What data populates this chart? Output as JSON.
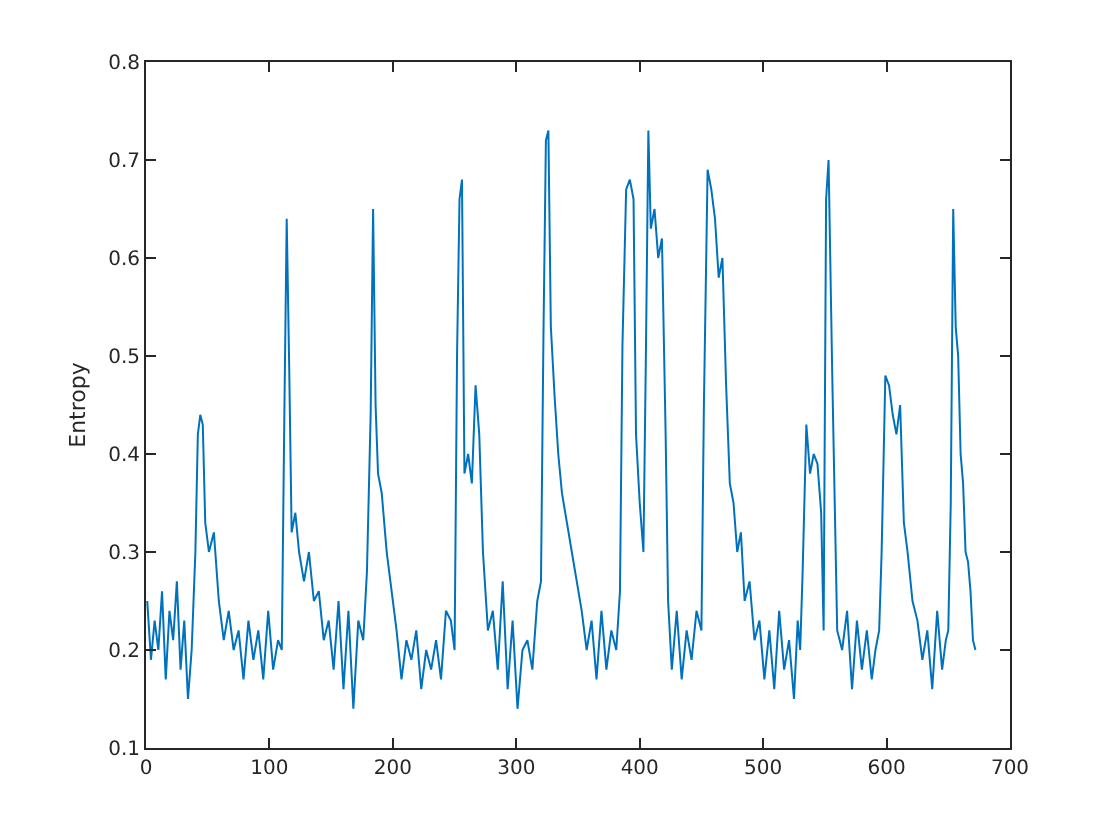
{
  "chart_data": {
    "type": "line",
    "ylabel": "Entropy",
    "xlim": [
      0,
      700
    ],
    "ylim": [
      0.1,
      0.8
    ],
    "xticks": [
      0,
      100,
      200,
      300,
      400,
      500,
      600,
      700
    ],
    "yticks": [
      0.1,
      0.2,
      0.3,
      0.4,
      0.5,
      0.6,
      0.7,
      0.8
    ],
    "grid": false,
    "series": [
      {
        "color": "#0072bd",
        "x": [
          1,
          4,
          7,
          10,
          13,
          16,
          19,
          22,
          25,
          28,
          31,
          34,
          37,
          40,
          42,
          44,
          46,
          48,
          51,
          55,
          59,
          63,
          67,
          71,
          75,
          79,
          83,
          87,
          91,
          95,
          99,
          103,
          107,
          110,
          112,
          114,
          116,
          118,
          121,
          124,
          128,
          132,
          136,
          140,
          144,
          148,
          152,
          156,
          160,
          164,
          168,
          172,
          176,
          179,
          182,
          184,
          186,
          188,
          191,
          195,
          199,
          203,
          207,
          211,
          215,
          219,
          223,
          227,
          231,
          235,
          239,
          243,
          247,
          250,
          252,
          254,
          256,
          258,
          261,
          264,
          267,
          270,
          273,
          277,
          281,
          285,
          289,
          293,
          297,
          301,
          305,
          309,
          313,
          317,
          320,
          322,
          324,
          326,
          328,
          331,
          334,
          337,
          341,
          345,
          349,
          353,
          357,
          361,
          365,
          369,
          373,
          377,
          381,
          384,
          386,
          389,
          392,
          395,
          397,
          400,
          403,
          405,
          407,
          409,
          412,
          415,
          418,
          421,
          423,
          426,
          430,
          434,
          438,
          442,
          446,
          450,
          452,
          455,
          458,
          461,
          464,
          467,
          470,
          473,
          476,
          479,
          482,
          485,
          489,
          493,
          497,
          501,
          505,
          509,
          513,
          517,
          521,
          525,
          528,
          530,
          532,
          535,
          538,
          541,
          544,
          547,
          549,
          551,
          553,
          556,
          560,
          564,
          568,
          572,
          576,
          580,
          584,
          588,
          591,
          594,
          596,
          599,
          602,
          605,
          608,
          611,
          614,
          617,
          621,
          625,
          629,
          633,
          637,
          641,
          645,
          648,
          650,
          652,
          654,
          656,
          658,
          660,
          662,
          664,
          666,
          668,
          670,
          672
        ],
        "values": [
          0.25,
          0.19,
          0.23,
          0.2,
          0.26,
          0.17,
          0.24,
          0.21,
          0.27,
          0.18,
          0.23,
          0.15,
          0.2,
          0.3,
          0.42,
          0.44,
          0.43,
          0.33,
          0.3,
          0.32,
          0.25,
          0.21,
          0.24,
          0.2,
          0.22,
          0.17,
          0.23,
          0.19,
          0.22,
          0.17,
          0.24,
          0.18,
          0.21,
          0.2,
          0.43,
          0.64,
          0.49,
          0.32,
          0.34,
          0.3,
          0.27,
          0.3,
          0.25,
          0.26,
          0.21,
          0.23,
          0.18,
          0.25,
          0.16,
          0.24,
          0.14,
          0.23,
          0.21,
          0.28,
          0.44,
          0.65,
          0.45,
          0.38,
          0.36,
          0.3,
          0.26,
          0.22,
          0.17,
          0.21,
          0.19,
          0.22,
          0.16,
          0.2,
          0.18,
          0.21,
          0.17,
          0.24,
          0.23,
          0.2,
          0.5,
          0.66,
          0.68,
          0.38,
          0.4,
          0.37,
          0.47,
          0.42,
          0.3,
          0.22,
          0.24,
          0.18,
          0.27,
          0.16,
          0.23,
          0.14,
          0.2,
          0.21,
          0.18,
          0.25,
          0.27,
          0.52,
          0.72,
          0.73,
          0.53,
          0.46,
          0.4,
          0.36,
          0.33,
          0.3,
          0.27,
          0.24,
          0.2,
          0.23,
          0.17,
          0.24,
          0.18,
          0.22,
          0.2,
          0.26,
          0.51,
          0.67,
          0.68,
          0.66,
          0.42,
          0.35,
          0.3,
          0.5,
          0.73,
          0.63,
          0.65,
          0.6,
          0.62,
          0.42,
          0.25,
          0.18,
          0.24,
          0.17,
          0.22,
          0.19,
          0.24,
          0.22,
          0.45,
          0.69,
          0.67,
          0.64,
          0.58,
          0.6,
          0.47,
          0.37,
          0.35,
          0.3,
          0.32,
          0.25,
          0.27,
          0.21,
          0.23,
          0.17,
          0.22,
          0.16,
          0.24,
          0.18,
          0.21,
          0.15,
          0.23,
          0.2,
          0.28,
          0.43,
          0.38,
          0.4,
          0.39,
          0.34,
          0.22,
          0.66,
          0.7,
          0.48,
          0.22,
          0.2,
          0.24,
          0.16,
          0.23,
          0.18,
          0.22,
          0.17,
          0.2,
          0.22,
          0.3,
          0.48,
          0.47,
          0.44,
          0.42,
          0.45,
          0.33,
          0.3,
          0.25,
          0.23,
          0.19,
          0.22,
          0.16,
          0.24,
          0.18,
          0.21,
          0.22,
          0.35,
          0.65,
          0.53,
          0.5,
          0.4,
          0.37,
          0.3,
          0.29,
          0.26,
          0.21,
          0.2
        ]
      }
    ]
  }
}
